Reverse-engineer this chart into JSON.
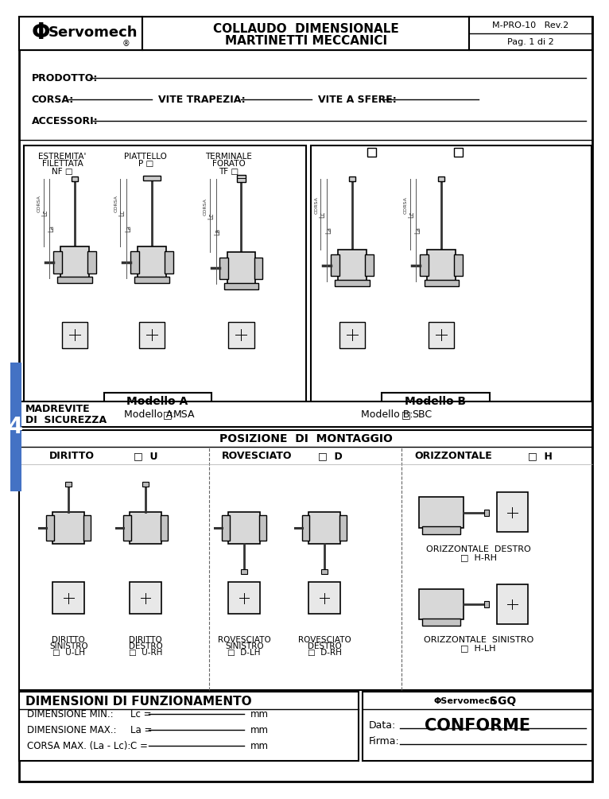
{
  "bg_color": "#ffffff",
  "border_color": "#000000",
  "title_line1": "COLLAUDO  DIMENSIONALE",
  "title_line2": "MARTINETTI MECCANICI",
  "doc_ref": "M-PRO-10   Rev.2",
  "page": "Pag. 1 di 2",
  "logo_text": "Servomech",
  "prodotto": "PRODOTTO:",
  "corsa": "CORSA:",
  "vite_trapezia": "VITE TRAPEZIA:",
  "vite_sfere": "VITE A SFERE:",
  "accessori": "ACCESSORI:",
  "modello_a": "Modello A",
  "modello_b": "Modello B",
  "nf_line1": "ESTREMITA'",
  "nf_line2": "FILETTATA",
  "nf_line3": "NF",
  "p_line1": "PIATTELLO",
  "p_line2": "P",
  "tf_line1": "TERMINALE",
  "tf_line2": "FORATO",
  "tf_line3": "TF",
  "madrevite_line1": "MADREVITE",
  "madrevite_line2": "DI  SICUREZZA",
  "modello_a_label": "Modello A:",
  "msa_label": "MSA",
  "modello_b_label": "Modello B:",
  "sbc_label": "SBC",
  "posizione_title": "POSIZIONE  DI  MONTAGGIO",
  "diritto_label": "DIRITTO",
  "diritto_code": "U",
  "rovesciato_label": "ROVESCIATO",
  "rovesciato_code": "D",
  "orizzontale_label": "ORIZZONTALE",
  "orizzontale_code": "H",
  "orizzontale_destro_line1": "ORIZZONTALE  DESTRO",
  "orizzontale_destro_line2": "□  H-RH",
  "dir_sin_line1": "DIRITTO",
  "dir_sin_line2": "SINISTRO",
  "dir_sin_line3": "□  U-LH",
  "dir_des_line1": "DIRITTO",
  "dir_des_line2": "DESTRO",
  "dir_des_line3": "□  U-RH",
  "rov_sin_line1": "ROVESCIATO",
  "rov_sin_line2": "SINISTRO",
  "rov_sin_line3": "□  D-LH",
  "rov_des_line1": "ROVESCIATO",
  "rov_des_line2": "DESTRO",
  "rov_des_line3": "□  D-RH",
  "orz_sin_line1": "ORIZZONTALE  SINISTRO",
  "orz_sin_line2": "□  H-LH",
  "dim_title": "DIMENSIONI DI FUNZIONAMENTO",
  "dim_min": "DIMENSIONE MIN.:",
  "lc_eq": "Lc =",
  "mm": "mm",
  "dim_max": "DIMENSIONE MAX.:",
  "la_eq": "La =",
  "corsa_max": "CORSA MAX. (La - Lc):",
  "c_eq": "C =",
  "sgq_text": "SGQ",
  "conforme": "CONFORME",
  "data_label": "Data:",
  "firma_label": "Firma:",
  "blue_tab": "#4472C4",
  "tab_number": "4",
  "checkbox": "□"
}
